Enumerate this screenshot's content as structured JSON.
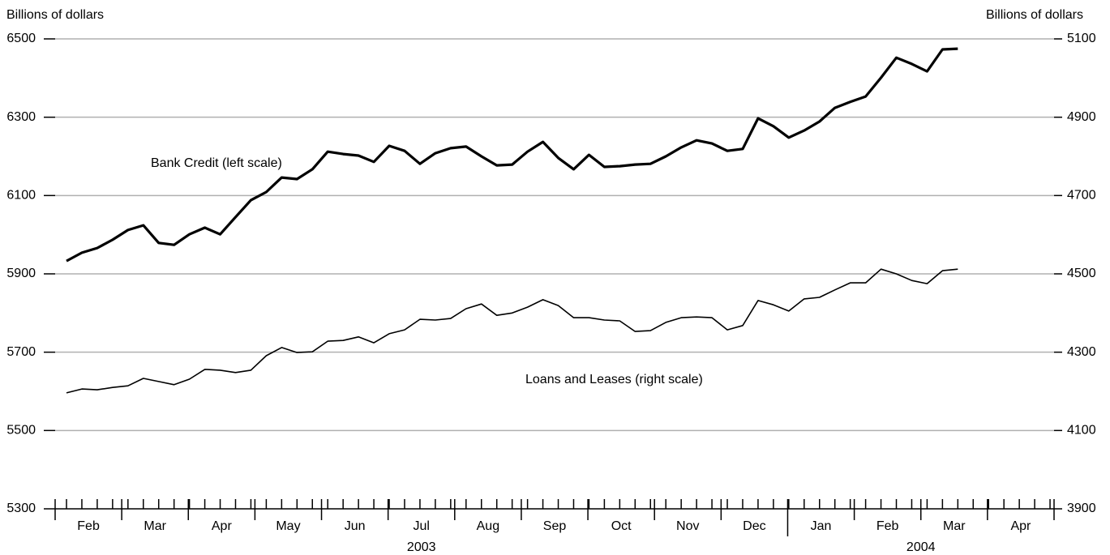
{
  "chart_data": {
    "type": "line",
    "y_label": "Billions of dollars",
    "y2_label": "Billions of dollars",
    "annotations": [
      "Bank Credit (left scale)",
      "Loans and Leases (right scale)"
    ],
    "month_labels": [
      "Feb",
      "Mar",
      "Apr",
      "May",
      "Jun",
      "Jul",
      "Aug",
      "Sep",
      "Oct",
      "Nov",
      "Dec",
      "Jan",
      "Feb",
      "Mar",
      "Apr"
    ],
    "year_labels": [
      "2003",
      "2004"
    ],
    "ylim": [
      5300,
      6500
    ],
    "yticks": [
      5300,
      5500,
      5700,
      5900,
      6100,
      6300,
      6500
    ],
    "y2lim": [
      3900,
      5100
    ],
    "y2ticks": [
      3900,
      4100,
      4300,
      4500,
      4700,
      4900,
      5100
    ],
    "grid": true,
    "series": [
      {
        "name": "Bank Credit",
        "color": "#000000",
        "axis": "y",
        "values": [
          5933,
          5954,
          5966,
          5987,
          6012,
          6024,
          5979,
          5974,
          6001,
          6018,
          6001,
          6045,
          6088,
          6109,
          6146,
          6142,
          6167,
          6212,
          6206,
          6202,
          6186,
          6227,
          6214,
          6181,
          6208,
          6221,
          6225,
          6200,
          6177,
          6179,
          6212,
          6237,
          6196,
          6167,
          6204,
          6173,
          6175,
          6179,
          6181,
          6200,
          6223,
          6241,
          6233,
          6214,
          6219,
          6297,
          6277,
          6248,
          6266,
          6289,
          6324,
          6339,
          6353,
          6401,
          6452,
          6436,
          6417,
          6473,
          6475
        ]
      },
      {
        "name": "Loans and Leases",
        "color": "#000000",
        "axis": "y2",
        "values": [
          4196,
          4206,
          4204,
          4210,
          4214,
          4233,
          4225,
          4217,
          4231,
          4256,
          4254,
          4248,
          4254,
          4291,
          4312,
          4299,
          4301,
          4328,
          4330,
          4339,
          4324,
          4347,
          4357,
          4384,
          4382,
          4386,
          4411,
          4423,
          4394,
          4400,
          4415,
          4434,
          4419,
          4388,
          4388,
          4382,
          4380,
          4353,
          4355,
          4376,
          4388,
          4390,
          4388,
          4357,
          4368,
          4432,
          4421,
          4405,
          4436,
          4440,
          4459,
          4477,
          4477,
          4512,
          4500,
          4483,
          4475,
          4508,
          4512
        ]
      }
    ]
  }
}
